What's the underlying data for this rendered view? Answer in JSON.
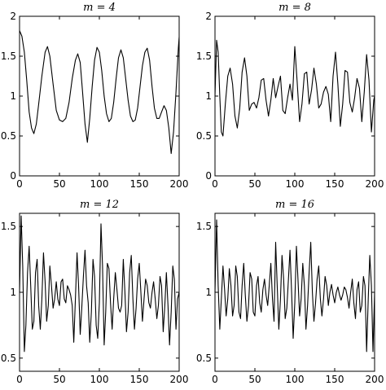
{
  "chart_data": [
    {
      "type": "line",
      "title": "m = 4",
      "xlabel": "",
      "ylabel": "",
      "xlim": [
        0,
        200
      ],
      "ylim": [
        0,
        2
      ],
      "xticks": [
        0,
        50,
        100,
        150,
        200
      ],
      "yticks": [
        0,
        0.5,
        1,
        1.5,
        2
      ],
      "ytick_labels": [
        "0",
        "0.5",
        "1",
        "1.5",
        "2"
      ],
      "grid": false,
      "series": [
        {
          "x": [
            0,
            3,
            6,
            9,
            12,
            15,
            18,
            21,
            24,
            28,
            32,
            35,
            38,
            42,
            46,
            50,
            54,
            58,
            62,
            66,
            70,
            73,
            76,
            79,
            82,
            85,
            88,
            91,
            94,
            97,
            100,
            103,
            106,
            109,
            112,
            115,
            118,
            121,
            124,
            127,
            130,
            133,
            136,
            139,
            142,
            145,
            148,
            151,
            154,
            157,
            160,
            163,
            166,
            169,
            172,
            175,
            178,
            181,
            184,
            187,
            190,
            193,
            196,
            199,
            200
          ],
          "y": [
            1.82,
            1.75,
            1.55,
            1.2,
            0.8,
            0.6,
            0.53,
            0.65,
            0.9,
            1.25,
            1.55,
            1.62,
            1.5,
            1.15,
            0.82,
            0.7,
            0.68,
            0.72,
            0.92,
            1.22,
            1.45,
            1.53,
            1.42,
            1.05,
            0.65,
            0.42,
            0.72,
            1.12,
            1.45,
            1.61,
            1.55,
            1.32,
            1.0,
            0.78,
            0.68,
            0.72,
            0.92,
            1.22,
            1.48,
            1.58,
            1.48,
            1.22,
            0.95,
            0.75,
            0.68,
            0.7,
            0.85,
            1.12,
            1.38,
            1.55,
            1.6,
            1.45,
            1.12,
            0.85,
            0.72,
            0.72,
            0.8,
            0.88,
            0.82,
            0.6,
            0.28,
            0.55,
            1.05,
            1.6,
            1.74
          ]
        }
      ]
    },
    {
      "type": "line",
      "title": "m = 8",
      "xlabel": "",
      "ylabel": "",
      "xlim": [
        0,
        200
      ],
      "ylim": [
        0,
        2
      ],
      "xticks": [
        0,
        50,
        100,
        150,
        200
      ],
      "yticks": [
        0,
        0.5,
        1,
        1.5,
        2
      ],
      "ytick_labels": [
        "0",
        "0.5",
        "1",
        "1.5",
        "2"
      ],
      "grid": false,
      "series": [
        {
          "x": [
            0,
            2,
            4,
            6,
            8,
            10,
            13,
            16,
            19,
            22,
            25,
            28,
            31,
            34,
            37,
            40,
            43,
            46,
            49,
            52,
            55,
            58,
            61,
            64,
            67,
            70,
            73,
            76,
            79,
            82,
            85,
            88,
            91,
            94,
            97,
            100,
            103,
            106,
            109,
            112,
            115,
            118,
            121,
            124,
            127,
            130,
            133,
            136,
            139,
            142,
            145,
            148,
            151,
            154,
            157,
            160,
            163,
            166,
            169,
            172,
            175,
            178,
            181,
            184,
            187,
            190,
            193,
            196,
            199,
            200
          ],
          "y": [
            1.0,
            1.7,
            1.55,
            1.0,
            0.55,
            0.5,
            0.9,
            1.25,
            1.35,
            1.15,
            0.75,
            0.6,
            0.85,
            1.3,
            1.48,
            1.25,
            0.82,
            0.9,
            0.92,
            0.85,
            0.98,
            1.2,
            1.22,
            0.95,
            0.75,
            0.95,
            1.22,
            0.98,
            1.12,
            1.25,
            0.82,
            0.78,
            0.98,
            1.15,
            0.95,
            1.62,
            1.18,
            0.68,
            0.9,
            1.28,
            1.3,
            0.9,
            1.08,
            1.35,
            1.15,
            0.85,
            0.9,
            1.05,
            1.12,
            1.02,
            0.68,
            1.25,
            1.55,
            1.15,
            0.62,
            0.9,
            1.32,
            1.3,
            0.92,
            0.8,
            0.98,
            1.22,
            1.1,
            0.68,
            1.05,
            1.52,
            1.2,
            0.55,
            0.95,
            1.0
          ]
        }
      ]
    },
    {
      "type": "line",
      "title": "m = 12",
      "xlabel": "",
      "ylabel": "",
      "xlim": [
        0,
        200
      ],
      "ylim": [
        0.4,
        1.6
      ],
      "xticks": [
        0,
        50,
        100,
        150,
        200
      ],
      "yticks": [
        0.5,
        1,
        1.5
      ],
      "ytick_labels": [
        "0.5",
        "1",
        "1.5"
      ],
      "grid": false,
      "series": [
        {
          "x": [
            0,
            2,
            4,
            6,
            8,
            10,
            12,
            14,
            16,
            18,
            20,
            22,
            24,
            26,
            28,
            30,
            32,
            34,
            36,
            38,
            40,
            42,
            44,
            46,
            48,
            50,
            52,
            54,
            56,
            58,
            60,
            62,
            64,
            66,
            68,
            70,
            72,
            74,
            76,
            78,
            80,
            82,
            84,
            86,
            88,
            90,
            92,
            94,
            96,
            98,
            100,
            102,
            104,
            106,
            108,
            110,
            112,
            114,
            116,
            118,
            120,
            122,
            124,
            126,
            128,
            130,
            132,
            134,
            136,
            138,
            140,
            142,
            144,
            146,
            148,
            150,
            152,
            154,
            156,
            158,
            160,
            162,
            164,
            166,
            168,
            170,
            172,
            174,
            176,
            178,
            180,
            182,
            184,
            186,
            188,
            190,
            192,
            194,
            196,
            198,
            200
          ],
          "y": [
            1.0,
            1.58,
            1.2,
            0.55,
            0.75,
            1.15,
            1.35,
            1.05,
            0.72,
            0.78,
            1.15,
            1.25,
            0.9,
            0.72,
            0.95,
            1.3,
            1.08,
            0.78,
            0.9,
            1.2,
            1.05,
            0.88,
            0.95,
            1.08,
            0.95,
            0.9,
            1.08,
            1.1,
            0.95,
            0.92,
            1.05,
            1.02,
            0.98,
            0.9,
            0.62,
            0.95,
            1.3,
            1.05,
            0.68,
            0.88,
            1.12,
            1.32,
            1.05,
            0.92,
            0.62,
            0.85,
            1.25,
            1.12,
            0.75,
            0.65,
            0.92,
            1.52,
            1.2,
            0.6,
            0.85,
            1.22,
            1.18,
            0.92,
            0.72,
            0.95,
            1.15,
            1.02,
            0.88,
            0.85,
            0.9,
            1.25,
            1.0,
            0.7,
            0.85,
            1.15,
            1.28,
            0.95,
            0.72,
            0.88,
            1.1,
            1.22,
            1.0,
            0.78,
            0.95,
            1.1,
            1.05,
            0.92,
            0.88,
            1.0,
            1.08,
            0.95,
            0.8,
            0.9,
            1.12,
            1.05,
            0.7,
            0.9,
            1.15,
            0.9,
            0.6,
            0.85,
            1.2,
            1.1,
            0.72,
            0.95,
            1.0
          ]
        }
      ]
    },
    {
      "type": "line",
      "title": "m = 16",
      "xlabel": "",
      "ylabel": "",
      "xlim": [
        0,
        200
      ],
      "ylim": [
        0.4,
        1.6
      ],
      "xticks": [
        0,
        50,
        100,
        150,
        200
      ],
      "yticks": [
        0.5,
        1,
        1.5
      ],
      "ytick_labels": [
        "0.5",
        "1",
        "1.5"
      ],
      "grid": false,
      "series": [
        {
          "x": [
            0,
            2,
            4,
            6,
            8,
            10,
            12,
            14,
            16,
            18,
            20,
            22,
            24,
            26,
            28,
            30,
            32,
            34,
            36,
            38,
            40,
            42,
            44,
            46,
            48,
            50,
            52,
            54,
            56,
            58,
            60,
            62,
            64,
            66,
            68,
            70,
            72,
            74,
            76,
            78,
            80,
            82,
            84,
            86,
            88,
            90,
            92,
            94,
            96,
            98,
            100,
            102,
            104,
            106,
            108,
            110,
            112,
            114,
            116,
            118,
            120,
            122,
            124,
            126,
            128,
            130,
            132,
            134,
            136,
            138,
            140,
            142,
            144,
            146,
            148,
            150,
            152,
            154,
            156,
            158,
            160,
            162,
            164,
            166,
            168,
            170,
            172,
            174,
            176,
            178,
            180,
            182,
            184,
            186,
            188,
            190,
            192,
            194,
            196,
            198,
            200
          ],
          "y": [
            1.0,
            1.55,
            1.05,
            0.72,
            0.95,
            1.2,
            1.02,
            0.82,
            0.95,
            1.18,
            1.05,
            0.82,
            0.9,
            1.2,
            1.12,
            0.85,
            0.8,
            1.05,
            1.22,
            0.98,
            0.78,
            0.9,
            1.15,
            1.1,
            0.85,
            0.82,
            1.05,
            1.12,
            0.92,
            0.85,
            1.02,
            1.1,
            0.98,
            0.9,
            1.05,
            1.22,
            0.95,
            0.78,
            1.38,
            1.05,
            0.72,
            0.95,
            1.28,
            1.1,
            0.8,
            0.88,
            1.1,
            1.32,
            1.0,
            0.65,
            0.92,
            1.35,
            1.1,
            0.82,
            0.95,
            1.22,
            1.05,
            0.72,
            0.9,
            1.15,
            1.38,
            1.0,
            0.78,
            0.92,
            1.1,
            1.2,
            0.95,
            0.82,
            0.95,
            1.12,
            1.05,
            0.9,
            1.0,
            1.06,
            0.98,
            0.92,
            1.0,
            1.04,
            0.98,
            0.94,
            0.98,
            1.04,
            1.02,
            0.96,
            0.88,
            1.0,
            1.1,
            0.92,
            0.8,
            1.02,
            1.08,
            0.85,
            0.9,
            1.12,
            1.05,
            0.55,
            0.95,
            1.28,
            1.05,
            0.55,
            1.0
          ]
        }
      ]
    }
  ]
}
